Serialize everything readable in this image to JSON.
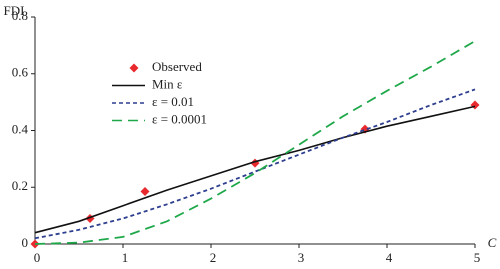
{
  "chart_data": {
    "type": "line",
    "x_label": "C",
    "y_label": "FDI",
    "xlim": [
      0,
      5
    ],
    "xticks": [
      0,
      1,
      2,
      3,
      4,
      5
    ],
    "ylim": [
      0,
      0.8
    ],
    "yticks": [
      0,
      0.2,
      0.4,
      0.6,
      0.8
    ],
    "grid": false,
    "series": [
      {
        "name": "Observed",
        "kind": "scatter",
        "color": "#e8292e",
        "x": [
          0,
          0.625,
          1.25,
          2.5,
          3.75,
          5
        ],
        "values": [
          0,
          0.09,
          0.185,
          0.285,
          0.405,
          0.49
        ]
      },
      {
        "name": "Min ε",
        "kind": "line",
        "dash": "solid",
        "color": "#111111",
        "x": [
          0,
          0.5,
          1,
          1.5,
          2,
          2.5,
          3,
          3.5,
          4,
          4.5,
          5
        ],
        "values": [
          0.04,
          0.08,
          0.135,
          0.19,
          0.24,
          0.29,
          0.33,
          0.375,
          0.415,
          0.45,
          0.485
        ]
      },
      {
        "name": "ε = 0.01",
        "kind": "line",
        "dash": "short",
        "color": "#2e3f8f",
        "x": [
          0,
          0.5,
          1,
          1.5,
          2,
          2.5,
          3,
          3.5,
          4,
          4.5,
          5
        ],
        "values": [
          0.02,
          0.05,
          0.09,
          0.14,
          0.195,
          0.255,
          0.315,
          0.375,
          0.43,
          0.49,
          0.545
        ]
      },
      {
        "name": "ε = 0.0001",
        "kind": "line",
        "dash": "long",
        "color": "#1fa84a",
        "x": [
          0,
          0.5,
          1,
          1.5,
          2,
          2.5,
          3,
          3.5,
          4,
          4.5,
          5
        ],
        "values": [
          0,
          0.005,
          0.025,
          0.08,
          0.16,
          0.25,
          0.35,
          0.45,
          0.54,
          0.625,
          0.715
        ]
      }
    ]
  }
}
